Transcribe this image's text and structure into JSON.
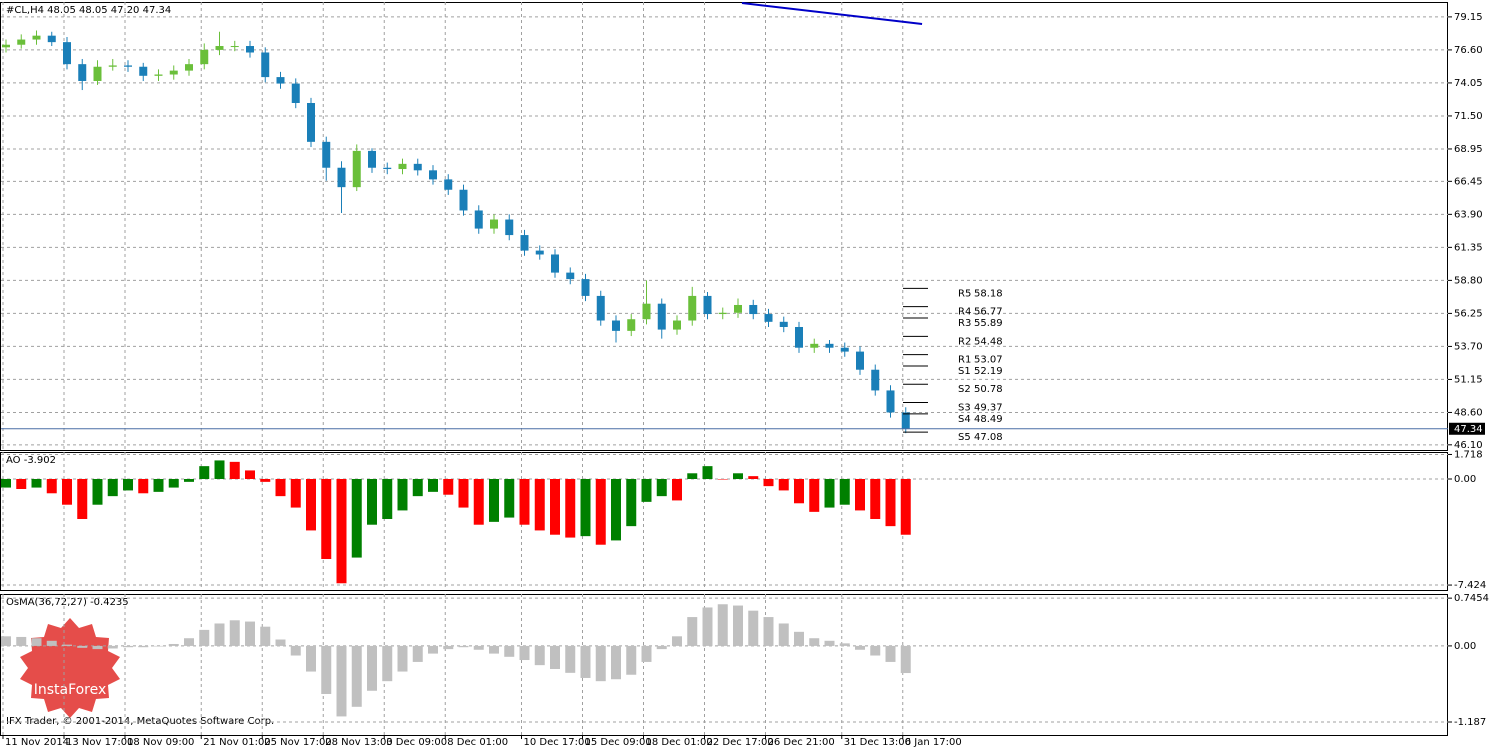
{
  "chart_data": [
    {
      "type": "candlestick",
      "title": "#CL,H4  48.05 48.05 47.20 47.34",
      "categories": [
        "11 Nov 2014",
        null,
        null,
        null,
        "13 Nov 17:00",
        null,
        null,
        null,
        "18 Nov 09:00",
        null,
        null,
        null,
        null,
        "21 Nov 01:00",
        null,
        null,
        null,
        "25 Nov 17:00",
        null,
        null,
        null,
        "28 Nov 13:00",
        null,
        null,
        null,
        "3 Dec 09:00",
        null,
        null,
        null,
        "8 Dec 01:00",
        null,
        null,
        null,
        null,
        "10 Dec 17:00",
        null,
        null,
        null,
        "15 Dec 09:00",
        null,
        null,
        null,
        "18 Dec 01:00",
        null,
        null,
        null,
        "22 Dec 17:00",
        null,
        null,
        null,
        "26 Dec 21:00",
        null,
        null,
        null,
        null,
        "31 Dec 13:00",
        null,
        null,
        null,
        "6 Jan 17:00"
      ],
      "open": [
        76.8,
        77.0,
        77.4,
        77.7,
        77.2,
        75.5,
        74.2,
        75.3,
        75.4,
        75.3,
        74.6,
        74.7,
        75.0,
        75.5,
        76.6,
        76.9,
        76.9,
        76.4,
        74.5,
        74.0,
        72.5,
        69.5,
        67.5,
        66.0,
        68.8,
        67.5,
        67.4,
        67.8,
        67.3,
        66.6,
        65.8,
        64.2,
        62.8,
        63.5,
        62.3,
        61.1,
        60.8,
        59.4,
        58.9,
        57.6,
        55.7,
        54.9,
        55.8,
        57.0,
        55.0,
        55.7,
        57.6,
        56.2,
        56.3,
        56.9,
        56.2,
        55.6,
        55.2,
        53.6,
        53.9,
        53.6,
        53.3,
        51.9,
        50.3,
        48.6
      ],
      "high": [
        77.4,
        77.8,
        78.1,
        78.0,
        77.6,
        75.9,
        75.8,
        75.9,
        75.8,
        75.6,
        75.1,
        75.4,
        75.9,
        77.1,
        78.0,
        77.3,
        77.3,
        76.8,
        74.9,
        74.4,
        72.9,
        69.9,
        68.0,
        69.3,
        69.0,
        67.9,
        68.2,
        68.2,
        67.7,
        67.0,
        66.2,
        64.6,
        63.9,
        63.9,
        62.7,
        61.5,
        61.2,
        59.8,
        59.3,
        58.0,
        56.1,
        56.2,
        58.8,
        57.4,
        56.1,
        58.3,
        57.9,
        56.7,
        57.4,
        57.3,
        56.6,
        56.0,
        55.6,
        54.3,
        54.2,
        54.0,
        53.7,
        52.3,
        50.7,
        49.0
      ],
      "low": [
        76.4,
        76.7,
        77.0,
        76.9,
        75.1,
        73.5,
        73.9,
        75.0,
        74.9,
        74.2,
        74.2,
        74.3,
        74.6,
        75.1,
        76.2,
        76.5,
        76.0,
        74.1,
        73.6,
        72.1,
        69.1,
        66.5,
        64.0,
        65.7,
        67.1,
        67.0,
        67.0,
        66.9,
        66.2,
        65.4,
        63.8,
        62.4,
        62.4,
        61.9,
        60.7,
        60.4,
        59.0,
        58.5,
        57.2,
        55.3,
        54.0,
        54.5,
        55.4,
        54.3,
        54.6,
        55.3,
        55.8,
        55.8,
        55.9,
        55.8,
        55.2,
        54.8,
        53.2,
        53.2,
        53.2,
        52.9,
        51.5,
        49.9,
        48.2,
        47.0
      ],
      "close": [
        77.0,
        77.4,
        77.7,
        77.2,
        75.5,
        74.2,
        75.3,
        75.4,
        75.3,
        74.6,
        74.7,
        75.0,
        75.5,
        76.6,
        76.9,
        76.9,
        76.4,
        74.5,
        74.0,
        72.5,
        69.5,
        67.5,
        66.0,
        68.8,
        67.5,
        67.4,
        67.8,
        67.3,
        66.6,
        65.8,
        64.2,
        62.8,
        63.5,
        62.3,
        61.1,
        60.8,
        59.4,
        58.9,
        57.6,
        55.7,
        54.9,
        55.8,
        57.0,
        55.0,
        55.7,
        57.6,
        56.2,
        56.3,
        56.9,
        56.2,
        55.6,
        55.2,
        53.6,
        53.9,
        53.6,
        53.3,
        51.9,
        50.3,
        48.6,
        47.34
      ],
      "up_color": "#6abf3a",
      "down_color": "#1a7fb8",
      "ylim": [
        45.7,
        80.3
      ],
      "yticks": [
        79.15,
        {
          "value": 76.6,
          "label": "76.60"
        },
        74.05,
        {
          "value": 71.5,
          "label": "71.50"
        },
        68.95,
        66.45,
        {
          "value": 63.9,
          "label": "63.90"
        },
        61.35,
        {
          "value": 58.8,
          "label": "58.80"
        },
        56.25,
        {
          "value": 53.7,
          "label": "53.70"
        },
        51.15,
        {
          "value": 48.6,
          "label": "48.60"
        },
        {
          "value": 46.1,
          "label": "46.10"
        }
      ],
      "grid": true,
      "last_price": 47.34,
      "pivots": [
        {
          "name": "R5",
          "value": 58.18
        },
        {
          "name": "R4",
          "value": 56.77
        },
        {
          "name": "R3",
          "value": 55.89
        },
        {
          "name": "R2",
          "value": 54.48
        },
        {
          "name": "R1",
          "value": 53.07
        },
        {
          "name": "S1",
          "value": 52.19
        },
        {
          "name": "S2",
          "value": 50.78
        },
        {
          "name": "S3",
          "value": 49.37
        },
        {
          "name": "S4",
          "value": 48.49
        },
        {
          "name": "S5",
          "value": 47.08
        }
      ],
      "trendline": {
        "x": [
          48.26,
          60.07
        ],
        "y": [
          80.22,
          78.6
        ],
        "color": "#0000c8"
      }
    },
    {
      "type": "bar",
      "title": "AO -3.902",
      "values": [
        -0.6,
        -0.7,
        -0.6,
        -1.0,
        -1.8,
        -2.8,
        -1.8,
        -1.2,
        -0.8,
        -1.0,
        -0.9,
        -0.6,
        -0.2,
        0.9,
        1.3,
        1.2,
        0.6,
        -0.2,
        -1.2,
        -2.0,
        -3.6,
        -5.6,
        -7.3,
        -5.5,
        -3.2,
        -2.8,
        -2.2,
        -1.2,
        -0.9,
        -1.1,
        -2.0,
        -3.2,
        -3.0,
        -2.7,
        -3.2,
        -3.6,
        -3.9,
        -4.1,
        -4.0,
        -4.6,
        -4.3,
        -3.3,
        -1.6,
        -1.2,
        -1.5,
        0.4,
        0.9,
        0.0,
        0.4,
        0.2,
        -0.5,
        -0.8,
        -1.7,
        -2.3,
        -2.0,
        -1.8,
        -2.2,
        -2.8,
        -3.3,
        -3.902
      ],
      "up_color": "#008000",
      "down_color": "#ff0000",
      "ylim": [
        -7.77,
        1.89
      ],
      "yticks": [
        1.718,
        {
          "value": 0,
          "label": "0.00"
        },
        -7.424
      ],
      "grid": true
    },
    {
      "type": "bar",
      "title": "OsMA(36,72,27) -0.4235",
      "values": [
        0.15,
        0.14,
        0.12,
        0.08,
        0.02,
        -0.03,
        -0.05,
        -0.04,
        -0.02,
        -0.02,
        0.0,
        0.03,
        0.12,
        0.25,
        0.35,
        0.4,
        0.38,
        0.3,
        0.1,
        -0.15,
        -0.4,
        -0.75,
        -1.1,
        -0.95,
        -0.7,
        -0.55,
        -0.4,
        -0.25,
        -0.12,
        -0.05,
        -0.02,
        -0.06,
        -0.12,
        -0.17,
        -0.22,
        -0.3,
        -0.36,
        -0.42,
        -0.5,
        -0.55,
        -0.52,
        -0.45,
        -0.25,
        -0.05,
        0.15,
        0.45,
        0.6,
        0.65,
        0.63,
        0.55,
        0.45,
        0.35,
        0.22,
        0.12,
        0.08,
        0.04,
        -0.06,
        -0.15,
        -0.25,
        -0.4235
      ],
      "color": "#c0c0c0",
      "ylim": [
        -1.39,
        0.81
      ],
      "yticks": [
        0.7454,
        {
          "value": 0,
          "label": "0.00"
        },
        -1.187
      ],
      "grid": true
    }
  ],
  "watermark": {
    "brand": "InstaForex",
    "copyright": "IFX Trader, © 2001-2014, MetaQuotes Software Corp."
  }
}
